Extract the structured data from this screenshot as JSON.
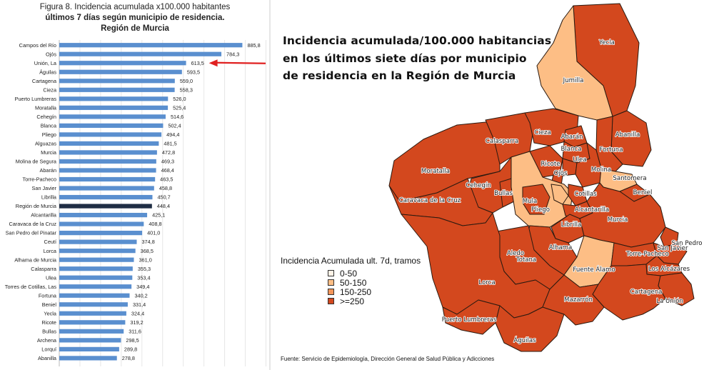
{
  "chart_data": {
    "type": "bar",
    "orientation": "horizontal",
    "title_line1": "Figura 8. Incidencia acumulada x100.000 habitantes",
    "title_line2": "últimos 7 días según municipio de residencia.",
    "title_line3": "Región de Murcia",
    "categories": [
      "Campos del Río",
      "Ojós",
      "Unión, La",
      "Águilas",
      "Cartagena",
      "Cieza",
      "Puerto Lumbreras",
      "Moratalla",
      "Cehegín",
      "Blanca",
      "Pliego",
      "Alguazas",
      "Murcia",
      "Molina de Segura",
      "Abarán",
      "Torre-Pacheco",
      "San Javier",
      "Librilla",
      "Región de Murcia",
      "Alcantarilla",
      "Caravaca de la Cruz",
      "San Pedro del Pinatar",
      "Ceutí",
      "Lorca",
      "Alhama de Murcia",
      "Calasparra",
      "Ulea",
      "Torres de Cotillas, Las",
      "Fortuna",
      "Beniel",
      "Yecla",
      "Ricote",
      "Bullas",
      "Archena",
      "Lorquí",
      "Abanilla"
    ],
    "values": [
      885.8,
      784.3,
      613.5,
      593.5,
      559.0,
      558.3,
      526.0,
      525.4,
      514.6,
      502.4,
      494.4,
      481.5,
      472.8,
      469.3,
      468.4,
      463.5,
      458.8,
      450.7,
      448.4,
      425.1,
      408.8,
      401.0,
      374.8,
      368.5,
      361.0,
      355.3,
      353.4,
      349.4,
      340.2,
      331.4,
      324.4,
      319.2,
      311.6,
      298.5,
      289.8,
      278.8
    ],
    "value_labels": [
      "885,8",
      "784,3",
      "613,5",
      "593,5",
      "559,0",
      "558,3",
      "526,0",
      "525,4",
      "514,6",
      "502,4",
      "494,4",
      "481,5",
      "472,8",
      "469,3",
      "468,4",
      "463,5",
      "458,8",
      "450,7",
      "448,4",
      "425,1",
      "408,8",
      "401,0",
      "374,8",
      "368,5",
      "361,0",
      "355,3",
      "353,4",
      "349,4",
      "340,2",
      "331,4",
      "324,4",
      "319,2",
      "311,6",
      "298,5",
      "289,8",
      "278,8"
    ],
    "highlight_category": "Región de Murcia",
    "annotated_category": "Unión, La",
    "grid": true,
    "colors": {
      "bar": "#5a8fcf",
      "bar_highlight": "#1f2d44",
      "arrow": "#e02020"
    }
  },
  "map": {
    "title_lines": [
      "Incidencia acumulada/100.000 habitancias",
      "en los últimos siete días por municipio",
      "de residencia en la Región de Murcia"
    ],
    "legend": {
      "title": "Incidencia Acumulada ult. 7d, tramos",
      "items": [
        {
          "label": "0-50",
          "color": "#fdf2e6"
        },
        {
          "label": "50-150",
          "color": "#fdbe85"
        },
        {
          "label": "150-250",
          "color": "#f4955a"
        },
        {
          "label": ">=250",
          "color": "#d3481e"
        }
      ]
    },
    "source": "Fuente: Servicio de Epidemiología, Dirección General de Salud Pública y Adicciones",
    "municipalities": [
      {
        "name": "Yecla",
        "tier": 3
      },
      {
        "name": "Jumilla",
        "tier": 1
      },
      {
        "name": "Abanilla",
        "tier": 3
      },
      {
        "name": "Fortuna",
        "tier": 3
      },
      {
        "name": "Cieza",
        "tier": 3
      },
      {
        "name": "Abarán",
        "tier": 3
      },
      {
        "name": "Blanca",
        "tier": 3
      },
      {
        "name": "Calasparra",
        "tier": 3
      },
      {
        "name": "Moratalla",
        "tier": 3
      },
      {
        "name": "Ricote",
        "tier": 3
      },
      {
        "name": "Ulea",
        "tier": 3
      },
      {
        "name": "Ojós",
        "tier": 3
      },
      {
        "name": "Molina",
        "tier": 3
      },
      {
        "name": "Santomera",
        "tier": 1
      },
      {
        "name": "Beniel",
        "tier": 3
      },
      {
        "name": "Cehegín",
        "tier": 3
      },
      {
        "name": "Bullas",
        "tier": 3
      },
      {
        "name": "Caravaca de la Cruz",
        "tier": 3
      },
      {
        "name": "Mula",
        "tier": 1
      },
      {
        "name": "Pliego",
        "tier": 3
      },
      {
        "name": "Albudeite",
        "tier": 1
      },
      {
        "name": "Cotillas",
        "tier": 3
      },
      {
        "name": "Alcantarilla",
        "tier": 3
      },
      {
        "name": "Murcia",
        "tier": 3
      },
      {
        "name": "Librilla",
        "tier": 3
      },
      {
        "name": "Alhama",
        "tier": 3
      },
      {
        "name": "Aledo",
        "tier": 0
      },
      {
        "name": "Totana",
        "tier": 3
      },
      {
        "name": "Lorca",
        "tier": 3
      },
      {
        "name": "Fuente Álamo",
        "tier": 1
      },
      {
        "name": "Torre-Pacheco",
        "tier": 3
      },
      {
        "name": "San Pedro",
        "tier": 3
      },
      {
        "name": "San Javier",
        "tier": 3
      },
      {
        "name": "Los Alcázares",
        "tier": 3
      },
      {
        "name": "Cartagena",
        "tier": 3
      },
      {
        "name": "La Unión",
        "tier": 3
      },
      {
        "name": "Mazarrón",
        "tier": 3
      },
      {
        "name": "Puerto Lumbreras",
        "tier": 3
      },
      {
        "name": "Águilas",
        "tier": 3
      }
    ]
  }
}
